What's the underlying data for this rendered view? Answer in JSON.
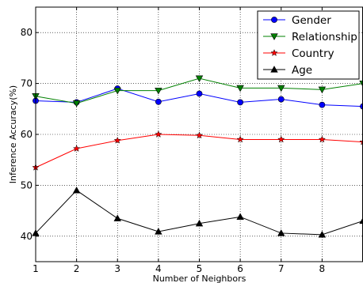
{
  "chart_data": {
    "type": "line",
    "xlabel": "Number of Neighbors",
    "ylabel": "Inference Accuracy(%)",
    "x": [
      1,
      2,
      3,
      4,
      5,
      6,
      7,
      8,
      9
    ],
    "xticks": [
      1,
      2,
      3,
      4,
      5,
      6,
      7,
      8
    ],
    "xlim": [
      1,
      9
    ],
    "yticks": [
      40,
      50,
      60,
      70,
      80
    ],
    "ylim": [
      35,
      85
    ],
    "grid": true,
    "grid_style": "dotted",
    "legend_position": "top-right",
    "series": [
      {
        "name": "Gender",
        "color": "#0000ff",
        "marker": "circle",
        "values": [
          66.6,
          66.3,
          69.0,
          66.4,
          68.0,
          66.3,
          66.9,
          65.8,
          65.5
        ]
      },
      {
        "name": "Relationship",
        "color": "#008000",
        "marker": "triangle-down",
        "values": [
          67.5,
          66.1,
          68.6,
          68.6,
          71.0,
          69.1,
          69.1,
          68.8,
          70.0
        ]
      },
      {
        "name": "Country",
        "color": "#ff0000",
        "marker": "star",
        "values": [
          53.5,
          57.2,
          58.8,
          60.0,
          59.8,
          59.0,
          59.0,
          59.0,
          58.5
        ]
      },
      {
        "name": "Age",
        "color": "#000000",
        "marker": "triangle-up",
        "values": [
          40.6,
          49.0,
          43.5,
          40.9,
          42.5,
          43.8,
          40.6,
          40.3,
          43.0
        ]
      }
    ]
  }
}
